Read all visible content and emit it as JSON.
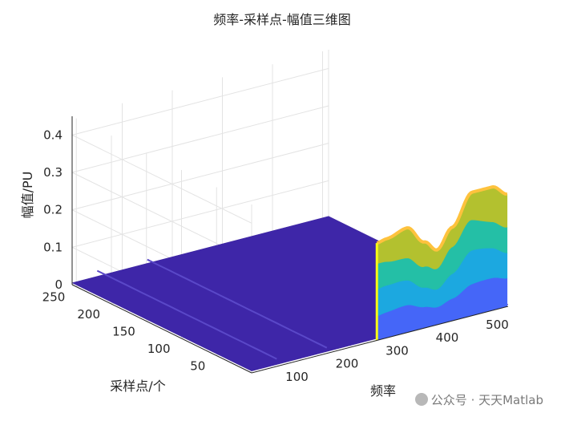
{
  "chart_data": {
    "type": "surface",
    "title": "频率-采样点-幅值三维图",
    "xlabel": "频率",
    "ylabel": "采样点/个",
    "zlabel": "幅值/PU",
    "x_ticks": [
      "100",
      "200",
      "300",
      "400",
      "500"
    ],
    "y_ticks": [
      "50",
      "100",
      "150",
      "200",
      "250"
    ],
    "z_ticks": [
      "0",
      "0.1",
      "0.2",
      "0.3",
      "0.4"
    ],
    "xlim": [
      0,
      512
    ],
    "ylim": [
      0,
      256
    ],
    "zlim": [
      0,
      0.45
    ],
    "colormap": [
      "#3e26a8",
      "#4566f8",
      "#1ca8e0",
      "#24bfa6",
      "#b3c12f",
      "#fec23d",
      "#f9fb15"
    ],
    "background_level": 0.005,
    "ridges": [
      {
        "x": 50,
        "level": 0.02
      },
      {
        "x": 150,
        "level": 0.015
      }
    ],
    "main_surface": {
      "x_start": 250,
      "x_end": 512,
      "edge_y": 0,
      "max_z_profile": [
        {
          "x": 250,
          "z": 0.26
        },
        {
          "x": 270,
          "z": 0.265
        },
        {
          "x": 310,
          "z": 0.28
        },
        {
          "x": 345,
          "z": 0.23
        },
        {
          "x": 370,
          "z": 0.2
        },
        {
          "x": 400,
          "z": 0.25
        },
        {
          "x": 440,
          "z": 0.33
        },
        {
          "x": 480,
          "z": 0.33
        },
        {
          "x": 512,
          "z": 0.3
        }
      ],
      "band_fractions": [
        0.25,
        0.5,
        0.75,
        1.0
      ]
    },
    "grid": true,
    "view": "3d"
  },
  "watermark": "公众号 · 天天Matlab"
}
